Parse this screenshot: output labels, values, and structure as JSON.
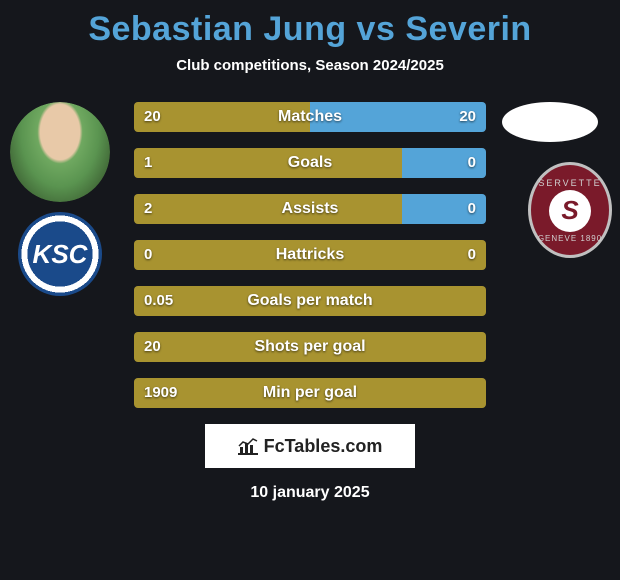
{
  "title": "Sebastian Jung vs Severin",
  "subtitle": "Club competitions, Season 2024/2025",
  "date": "10 january 2025",
  "footer_brand": "FcTables.com",
  "colors": {
    "title": "#54a4d8",
    "bar_left_fill": "#a89330",
    "bar_right_fill": "#54a4d8",
    "bar_bg": "#3a3a2a",
    "page_bg": "#15171c",
    "text": "#ffffff"
  },
  "player_left": {
    "name": "Sebastian Jung",
    "club_initials": "KSC"
  },
  "player_right": {
    "name": "Severin",
    "club_top": "SERVETTE",
    "club_letter": "S",
    "club_bottom": "GENEVE 1890"
  },
  "bars": [
    {
      "label": "Matches",
      "left_val": "20",
      "right_val": "20",
      "left_pct": 50,
      "right_pct": 50
    },
    {
      "label": "Goals",
      "left_val": "1",
      "right_val": "0",
      "left_pct": 76,
      "right_pct": 24
    },
    {
      "label": "Assists",
      "left_val": "2",
      "right_val": "0",
      "left_pct": 76,
      "right_pct": 24
    },
    {
      "label": "Hattricks",
      "left_val": "0",
      "right_val": "0",
      "left_pct": 100,
      "right_pct": 0
    },
    {
      "label": "Goals per match",
      "left_val": "0.05",
      "right_val": "",
      "left_pct": 100,
      "right_pct": 0
    },
    {
      "label": "Shots per goal",
      "left_val": "20",
      "right_val": "",
      "left_pct": 100,
      "right_pct": 0
    },
    {
      "label": "Min per goal",
      "left_val": "1909",
      "right_val": "",
      "left_pct": 100,
      "right_pct": 0
    }
  ]
}
